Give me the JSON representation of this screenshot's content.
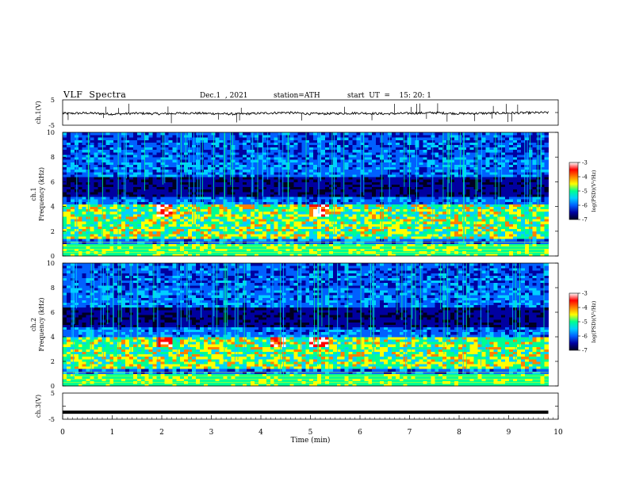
{
  "header": {
    "title": "VLF  Spectra",
    "date": "Dec.1  , 2021",
    "station": "station=ATH",
    "start": "start  UT  =    15: 20: 1"
  },
  "chart_data": [
    {
      "type": "line",
      "panel": "ch1-waveform",
      "ylabel": "ch.1(V)",
      "ylim": [
        -5,
        5
      ],
      "ytick_labels": [
        "5",
        "-5"
      ],
      "x": [
        0,
        0.5,
        1,
        1.5,
        2,
        2.5,
        3,
        3.5,
        4,
        4.5,
        5,
        5.5,
        6,
        6.5,
        7,
        7.5,
        8,
        8.5,
        9,
        9.5,
        9.8
      ],
      "values": [
        -0.4,
        -0.2,
        -0.6,
        -0.3,
        -0.5,
        -0.2,
        -0.4,
        -0.6,
        -0.3,
        0.0,
        -0.5,
        -0.4,
        -0.2,
        -0.5,
        -0.3,
        -0.1,
        -0.4,
        -0.3,
        -0.2,
        -0.1,
        0.0
      ],
      "color": "#000000"
    },
    {
      "type": "heatmap",
      "panel": "ch1-spectrogram",
      "ylabel": "ch.1\nFrequency  (kHz)",
      "ylim": [
        0,
        10
      ],
      "yticks": [
        0,
        2,
        4,
        6,
        8,
        10
      ],
      "colorbar": {
        "label": "log(PSD)(V²/Hz)",
        "range": [
          -7,
          -3
        ],
        "ticks": [
          -3,
          -4,
          -5,
          -6,
          -7
        ]
      },
      "note_bright_regions_min": [
        [
          1.9,
          2.2
        ],
        [
          5.0,
          5.4
        ]
      ],
      "band_khz": [
        1.5,
        4.2
      ]
    },
    {
      "type": "heatmap",
      "panel": "ch2-spectrogram",
      "ylabel": "ch.2\nFrequency  (kHz)",
      "ylim": [
        0,
        10
      ],
      "yticks": [
        0,
        2,
        4,
        6,
        8,
        10
      ],
      "colorbar": {
        "label": "log(PSD)(V²/Hz)",
        "range": [
          -7,
          -3
        ],
        "ticks": [
          -3,
          -4,
          -5,
          -6,
          -7
        ]
      },
      "note_bright_regions_min": [
        [
          1.9,
          2.2
        ],
        [
          4.2,
          4.5
        ],
        [
          5.0,
          5.4
        ]
      ],
      "band_khz": [
        1.5,
        4.0
      ]
    },
    {
      "type": "line",
      "panel": "ch3-waveform",
      "ylabel": "ch.3(V)",
      "ylim": [
        -5,
        5
      ],
      "ytick_labels": [
        "5",
        "-5"
      ],
      "x": [
        0,
        9.8
      ],
      "values": [
        -2.3,
        -2.3
      ],
      "color": "#000000"
    }
  ],
  "xaxis": {
    "label": "Time  (min)",
    "range": [
      0,
      10
    ],
    "ticks": [
      "0",
      "1",
      "2",
      "3",
      "4",
      "5",
      "6",
      "7",
      "8",
      "9",
      "10"
    ]
  },
  "colors": {
    "palette": [
      "#000020",
      "#0000a0",
      "#0060ff",
      "#00d0ff",
      "#00ff90",
      "#ffff00",
      "#ff8000",
      "#ff0000",
      "#ffffff"
    ]
  }
}
